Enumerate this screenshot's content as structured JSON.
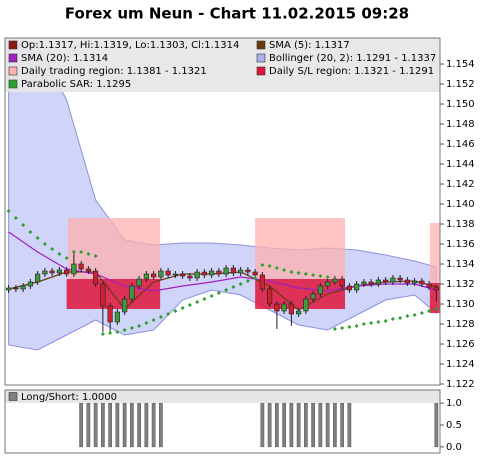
{
  "chart_data": [
    {
      "type": "candlestick",
      "title": "Forex um Neun - Chart 11.02.2015 09:28",
      "ylim": [
        1.1219,
        1.1566
      ],
      "yticks": [
        1.122,
        1.124,
        1.126,
        1.128,
        {
          "value": 1.13,
          "label": "1.130"
        },
        1.132,
        1.134,
        1.136,
        1.138,
        {
          "value": 1.14,
          "label": "1.140"
        },
        1.142,
        1.144,
        1.146,
        1.148,
        {
          "value": 1.15,
          "label": "1.150"
        },
        1.152,
        1.154
      ],
      "ohlc": {
        "name": "Op:1.1317, Hi:1.1319, Lo:1.1303, Cl:1.1314",
        "color": "#8b1a1a",
        "up_color": "#3c9b3c",
        "down_color": "#d02030",
        "open": [
          1.1314,
          1.1316,
          1.1315,
          1.1318,
          1.1322,
          1.133,
          1.1333,
          1.1331,
          1.1334,
          1.133,
          1.134,
          1.1335,
          1.1333,
          1.132,
          1.1298,
          1.1282,
          1.1292,
          1.1305,
          1.1318,
          1.1325,
          1.133,
          1.1327,
          1.1333,
          1.1329,
          1.133,
          1.1328,
          1.1326,
          1.1332,
          1.1329,
          1.1333,
          1.133,
          1.1336,
          1.1331,
          1.1334,
          1.1332,
          1.1329,
          1.1315,
          1.13,
          1.1293,
          1.13,
          1.129,
          1.1293,
          1.1305,
          1.131,
          1.1318,
          1.1322,
          1.1325,
          1.1318,
          1.1314,
          1.132,
          1.1322,
          1.132,
          1.1324,
          1.1322,
          1.1326,
          1.1324,
          1.1321,
          1.1323,
          1.132,
          1.1317
        ],
        "high": [
          1.1319,
          1.1319,
          1.1321,
          1.1325,
          1.1333,
          1.1336,
          1.1336,
          1.1337,
          1.1337,
          1.1352,
          1.1343,
          1.1338,
          1.1336,
          1.1323,
          1.1301,
          1.1295,
          1.1308,
          1.1321,
          1.1328,
          1.1333,
          1.1333,
          1.1336,
          1.1336,
          1.1333,
          1.1333,
          1.1331,
          1.1335,
          1.1335,
          1.1336,
          1.1336,
          1.1339,
          1.1339,
          1.1337,
          1.1337,
          1.1335,
          1.1332,
          1.1318,
          1.1303,
          1.1303,
          1.1303,
          1.1296,
          1.1308,
          1.1313,
          1.1321,
          1.1325,
          1.1328,
          1.1328,
          1.1321,
          1.1323,
          1.1325,
          1.1325,
          1.1327,
          1.1327,
          1.1329,
          1.1329,
          1.1327,
          1.1326,
          1.1326,
          1.1323,
          1.1319
        ],
        "low": [
          1.1311,
          1.1312,
          1.1312,
          1.1315,
          1.1319,
          1.1327,
          1.1328,
          1.1328,
          1.1327,
          1.1327,
          1.1332,
          1.133,
          1.1317,
          1.1272,
          1.1272,
          1.1279,
          1.1289,
          1.1302,
          1.1315,
          1.1322,
          1.1324,
          1.1324,
          1.1326,
          1.1326,
          1.1325,
          1.1323,
          1.1323,
          1.1326,
          1.1326,
          1.1327,
          1.1327,
          1.1328,
          1.1328,
          1.1329,
          1.1326,
          1.1312,
          1.1297,
          1.1275,
          1.129,
          1.1278,
          1.1287,
          1.129,
          1.1302,
          1.1307,
          1.1315,
          1.1319,
          1.1315,
          1.1311,
          1.1311,
          1.1317,
          1.1317,
          1.1317,
          1.1319,
          1.1319,
          1.1321,
          1.1318,
          1.1318,
          1.1317,
          1.1314,
          1.1303
        ],
        "close": [
          1.1316,
          1.1315,
          1.1318,
          1.1322,
          1.133,
          1.1333,
          1.1331,
          1.1334,
          1.133,
          1.134,
          1.1335,
          1.1333,
          1.132,
          1.1298,
          1.1282,
          1.1292,
          1.1305,
          1.1318,
          1.1325,
          1.133,
          1.1327,
          1.1333,
          1.1329,
          1.133,
          1.1328,
          1.1326,
          1.1332,
          1.1329,
          1.1333,
          1.133,
          1.1336,
          1.1331,
          1.1334,
          1.1332,
          1.1329,
          1.1315,
          1.13,
          1.1293,
          1.13,
          1.129,
          1.1293,
          1.1305,
          1.131,
          1.1318,
          1.1322,
          1.1325,
          1.1318,
          1.1314,
          1.132,
          1.1322,
          1.132,
          1.1324,
          1.1322,
          1.1326,
          1.1324,
          1.1321,
          1.1323,
          1.132,
          1.1317,
          1.1314
        ]
      },
      "series": [
        {
          "name": "SMA (5): 1.1317",
          "style": "line",
          "color": "#6b3a10",
          "x": [
            0,
            4,
            8,
            12,
            16,
            20,
            24,
            28,
            32,
            36,
            40,
            44,
            48,
            52,
            56,
            59
          ],
          "values": [
            1.1315,
            1.1322,
            1.1332,
            1.1332,
            1.1295,
            1.1322,
            1.133,
            1.133,
            1.1332,
            1.1318,
            1.1294,
            1.131,
            1.1318,
            1.1322,
            1.1323,
            1.1317
          ]
        },
        {
          "name": "SMA (20): 1.1314",
          "style": "line",
          "color": "#a020c0",
          "x": [
            0,
            4,
            8,
            12,
            16,
            20,
            24,
            28,
            32,
            36,
            40,
            44,
            48,
            52,
            56,
            59
          ],
          "values": [
            1.1372,
            1.1352,
            1.1335,
            1.133,
            1.1318,
            1.1313,
            1.1318,
            1.1322,
            1.1327,
            1.1323,
            1.1316,
            1.1313,
            1.1318,
            1.132,
            1.132,
            1.1314
          ]
        },
        {
          "name": "Bollinger (20, 2): 1.1291 - 1.1337",
          "style": "band",
          "color": "#aab0f2",
          "x": [
            0,
            4,
            8,
            12,
            16,
            20,
            24,
            28,
            32,
            36,
            40,
            44,
            48,
            52,
            56,
            59
          ],
          "upper": [
            1.1564,
            1.1559,
            1.1504,
            1.1404,
            1.1364,
            1.1359,
            1.1361,
            1.1361,
            1.1359,
            1.1356,
            1.1354,
            1.1356,
            1.1354,
            1.1349,
            1.1343,
            1.1337
          ],
          "lower": [
            1.1259,
            1.1254,
            1.1269,
            1.1284,
            1.1269,
            1.1274,
            1.1304,
            1.1314,
            1.1309,
            1.1294,
            1.1279,
            1.1274,
            1.1289,
            1.1304,
            1.1309,
            1.1291
          ]
        },
        {
          "name": "Parabolic SAR: 1.1295",
          "style": "dots",
          "color": "#2ca02c",
          "values": [
            1.1393,
            1.1386,
            1.1379,
            1.1372,
            1.1366,
            1.136,
            1.1355,
            1.135,
            1.1346,
            1.1352,
            1.1352,
            1.135,
            1.1348,
            1.127,
            1.1271,
            1.1272,
            1.1274,
            1.1276,
            1.1278,
            1.1281,
            1.1284,
            1.1287,
            1.129,
            1.1293,
            1.1296,
            1.1299,
            1.1302,
            1.1305,
            1.1308,
            1.1311,
            1.1314,
            1.1317,
            1.132,
            1.1323,
            1.1326,
            1.1339,
            1.1338,
            1.1336,
            1.1334,
            1.1332,
            1.1331,
            1.133,
            1.1329,
            1.1328,
            1.1327,
            1.1275,
            1.1276,
            1.1277,
            1.1278,
            1.128,
            1.1281,
            1.1282,
            1.1283,
            1.1285,
            1.1286,
            1.1288,
            1.1289,
            1.1291,
            1.1293,
            1.1295
          ]
        }
      ],
      "regions": [
        {
          "name": "Daily trading region: 1.1381 - 1.1321",
          "color": "#ffb0b0",
          "spans": [
            {
              "start": 8.2,
              "end": 20.9,
              "high": 1.1386,
              "low": 1.1325
            },
            {
              "start": 34.0,
              "end": 46.4,
              "high": 1.1386,
              "low": 1.1325
            },
            {
              "start": 58.1,
              "end": 59.5,
              "high": 1.1381,
              "low": 1.1321
            }
          ]
        },
        {
          "name": "Daily S/L region: 1.1321 - 1.1291",
          "color": "#e0143c",
          "spans": [
            {
              "start": 8.0,
              "end": 20.9,
              "high": 1.1325,
              "low": 1.1295
            },
            {
              "start": 34.0,
              "end": 46.4,
              "high": 1.1325,
              "low": 1.1295
            },
            {
              "start": 58.1,
              "end": 59.5,
              "high": 1.1321,
              "low": 1.1291
            }
          ]
        }
      ]
    },
    {
      "type": "bar",
      "name": "Long/Short: 1.0000",
      "color": "#808080",
      "values": [
        0,
        0,
        0,
        0,
        0,
        0,
        0,
        0,
        0,
        0,
        1,
        1,
        1,
        1,
        1,
        1,
        1,
        1,
        1,
        1,
        1,
        1,
        0,
        0,
        0,
        0,
        0,
        0,
        0,
        0,
        0,
        0,
        0,
        0,
        0,
        1,
        1,
        1,
        1,
        1,
        1,
        1,
        1,
        1,
        1,
        1,
        1,
        1,
        0,
        0,
        0,
        0,
        0,
        0,
        0,
        0,
        0,
        0,
        0,
        1
      ],
      "ylim": [
        -0.14,
        1.3
      ],
      "yticks": [
        {
          "value": 0,
          "label": "0.0"
        },
        {
          "value": 0.5,
          "label": "0.5"
        },
        {
          "value": 1,
          "label": "1.0"
        }
      ]
    }
  ]
}
